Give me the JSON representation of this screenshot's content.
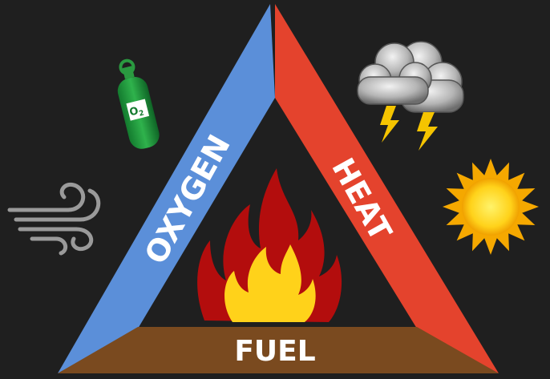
{
  "labels": {
    "oxygen": "OXYGEN",
    "heat": "HEAT",
    "fuel": "FUEL",
    "cylinder": "O",
    "cylinder_sub": "2"
  }
}
